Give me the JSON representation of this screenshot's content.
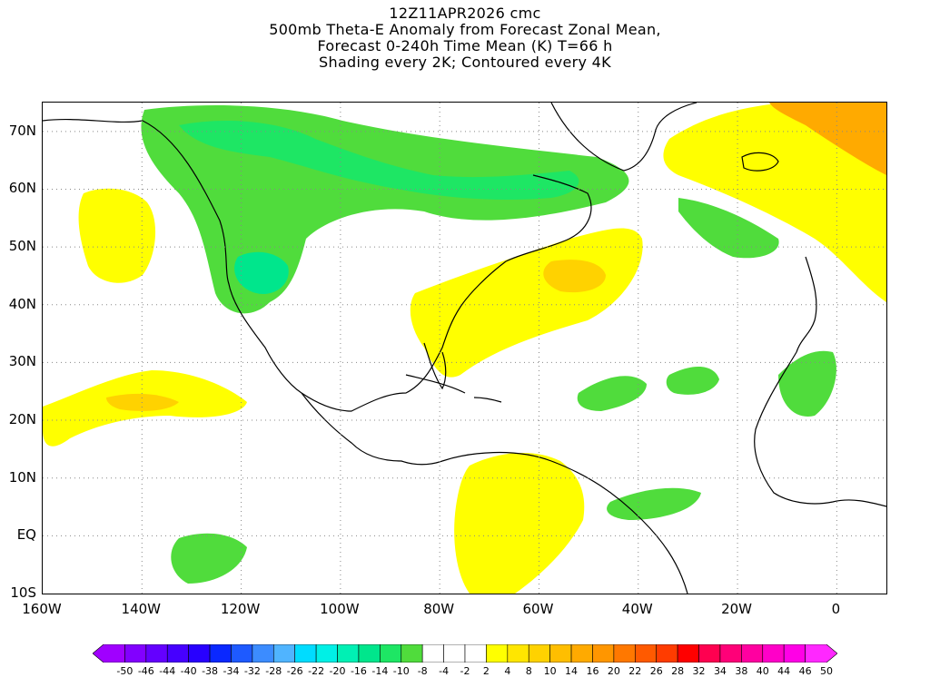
{
  "title": {
    "lines": [
      "12Z11APR2026 cmc",
      "500mb Theta-E Anomaly from Forecast Zonal Mean,",
      "Forecast 0-240h Time Mean (K) T=66 h",
      "Shading every 2K; Contoured every 4K"
    ]
  },
  "map": {
    "lon_range": [
      -160,
      10
    ],
    "lat_range": [
      -10,
      75
    ],
    "y_ticks": [
      "70N",
      "60N",
      "50N",
      "40N",
      "30N",
      "20N",
      "10N",
      "EQ",
      "10S"
    ],
    "x_ticks": [
      "160W",
      "140W",
      "120W",
      "100W",
      "80W",
      "60W",
      "40W",
      "20W",
      "0"
    ],
    "grid": "dotted"
  },
  "colorbar": {
    "labels": [
      "-50",
      "-46",
      "-44",
      "-40",
      "-38",
      "-34",
      "-32",
      "-28",
      "-26",
      "-22",
      "-20",
      "-16",
      "-14",
      "-10",
      "-8",
      "-4",
      "-2",
      "2",
      "4",
      "8",
      "10",
      "14",
      "16",
      "20",
      "22",
      "26",
      "28",
      "32",
      "34",
      "38",
      "40",
      "44",
      "46",
      "50"
    ],
    "colors": [
      "#a000ff",
      "#8200ff",
      "#6400ff",
      "#4600ff",
      "#2800ff",
      "#0a28ff",
      "#1e5aff",
      "#3c8cff",
      "#50b4ff",
      "#00dcff",
      "#00f0e6",
      "#00f0b4",
      "#00e68c",
      "#1ee664",
      "#50dc3c",
      "#ffffff",
      "#ffffff",
      "#ffffff",
      "#ffff00",
      "#ffe600",
      "#ffd200",
      "#ffbe00",
      "#ffaa00",
      "#ff9600",
      "#ff7800",
      "#ff5a00",
      "#ff3c00",
      "#ff0000",
      "#ff0050",
      "#ff0078",
      "#ff00a0",
      "#ff00c8",
      "#ff00e6",
      "#ff28ff"
    ]
  }
}
